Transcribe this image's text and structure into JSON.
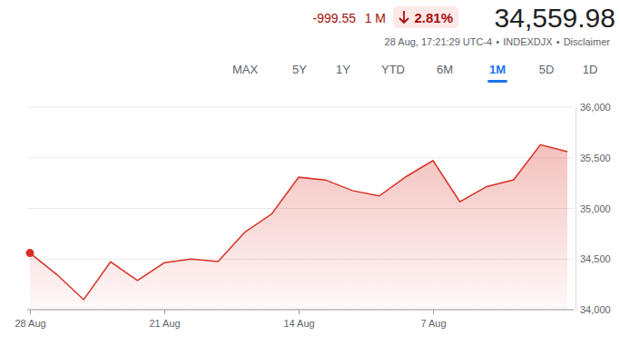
{
  "header": {
    "price": "34,559.98",
    "change_percent": "2.81%",
    "change": "-999.55",
    "period": "1 M",
    "timestamp": "28 Aug, 17:21:29 UTC-4",
    "exchange": "INDEXDJX",
    "disclaimer": "Disclaimer",
    "ranges": [
      "1D",
      "5D",
      "1M",
      "6M",
      "YTD",
      "1Y",
      "5Y",
      "MAX"
    ],
    "selected_range": "1M"
  },
  "chart_data": {
    "type": "line",
    "categories": [
      null,
      null,
      null,
      null,
      null,
      "7 Aug",
      null,
      null,
      null,
      null,
      "14 Aug",
      null,
      null,
      null,
      null,
      "21 Aug",
      null,
      null,
      null,
      null,
      "28 Aug"
    ],
    "values": [
      35560,
      35630,
      35282,
      35216,
      35066,
      35473,
      35314,
      35123,
      35176,
      35281,
      35308,
      34946,
      34766,
      34475,
      34500,
      34464,
      34288,
      34473,
      34099,
      34347,
      34560
    ],
    "color": "#d93025",
    "ylim": [
      34000,
      36000
    ],
    "yticks": [
      {
        "value": 34000,
        "label": "34,000"
      },
      {
        "value": 34500,
        "label": "34,500"
      },
      {
        "value": 35000,
        "label": "35,000"
      },
      {
        "value": 35500,
        "label": "35,500"
      },
      {
        "value": 36000,
        "label": "36,000"
      }
    ],
    "grid": true
  }
}
